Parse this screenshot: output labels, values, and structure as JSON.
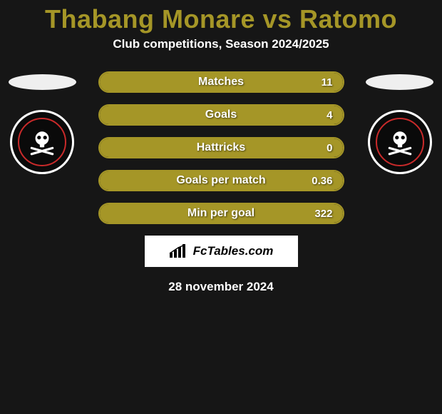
{
  "title": {
    "text": "Thabang Monare vs Ratomo",
    "color": "#a59627"
  },
  "subtitle": "Club competitions, Season 2024/2025",
  "colors": {
    "border": "#a59627",
    "fill": "#a59627",
    "background": "#161616",
    "brand_bg": "#ffffff"
  },
  "stats": [
    {
      "label": "Matches",
      "value": "11",
      "fill_pct": 100
    },
    {
      "label": "Goals",
      "value": "4",
      "fill_pct": 100
    },
    {
      "label": "Hattricks",
      "value": "0",
      "fill_pct": 100
    },
    {
      "label": "Goals per match",
      "value": "0.36",
      "fill_pct": 100
    },
    {
      "label": "Min per goal",
      "value": "322",
      "fill_pct": 100
    }
  ],
  "brand": "FcTables.com",
  "date": "28 november 2024",
  "club_left": "orlando-pirates",
  "club_right": "orlando-pirates"
}
